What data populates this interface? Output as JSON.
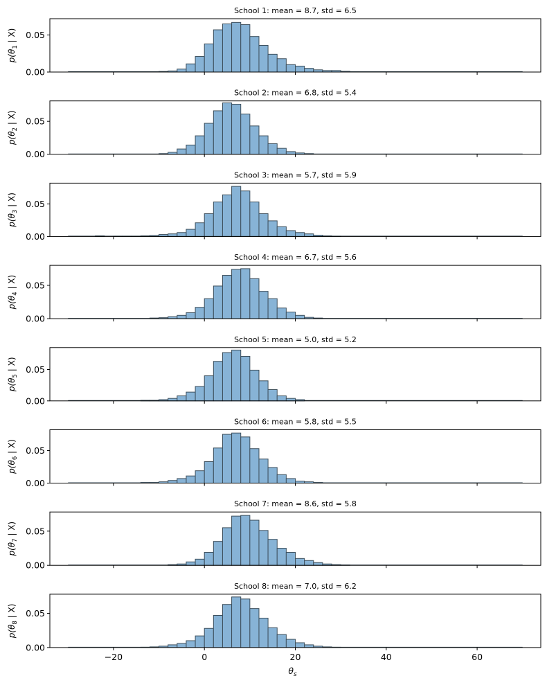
{
  "chart_data": [
    {
      "type": "bar",
      "title": "School 1: mean = 8.7, std = 6.5",
      "ylabel_var": "1",
      "ylim": [
        0,
        0.072
      ],
      "yticks": [
        "0.00",
        "0.05"
      ],
      "xlim": [
        -34,
        74
      ],
      "bin_width": 2,
      "bins": [
        {
          "x": -10,
          "y": 0.0008
        },
        {
          "x": -8,
          "y": 0.0015
        },
        {
          "x": -6,
          "y": 0.004
        },
        {
          "x": -4,
          "y": 0.011
        },
        {
          "x": -2,
          "y": 0.021
        },
        {
          "x": 0,
          "y": 0.038
        },
        {
          "x": 2,
          "y": 0.057
        },
        {
          "x": 4,
          "y": 0.065
        },
        {
          "x": 6,
          "y": 0.067
        },
        {
          "x": 8,
          "y": 0.064
        },
        {
          "x": 10,
          "y": 0.048
        },
        {
          "x": 12,
          "y": 0.036
        },
        {
          "x": 14,
          "y": 0.024
        },
        {
          "x": 16,
          "y": 0.018
        },
        {
          "x": 18,
          "y": 0.01
        },
        {
          "x": 20,
          "y": 0.008
        },
        {
          "x": 22,
          "y": 0.005
        },
        {
          "x": 24,
          "y": 0.003
        },
        {
          "x": 26,
          "y": 0.002
        },
        {
          "x": 28,
          "y": 0.002
        },
        {
          "x": 30,
          "y": 0.001
        },
        {
          "x": 32,
          "y": 0.0005
        }
      ]
    },
    {
      "type": "bar",
      "title": "School 2: mean = 6.8, std = 5.4",
      "ylabel_var": "2",
      "ylim": [
        0,
        0.081
      ],
      "yticks": [
        "0.00",
        "0.05"
      ],
      "xlim": [
        -34,
        74
      ],
      "bin_width": 2,
      "bins": [
        {
          "x": -10,
          "y": 0.001
        },
        {
          "x": -8,
          "y": 0.003
        },
        {
          "x": -6,
          "y": 0.008
        },
        {
          "x": -4,
          "y": 0.014
        },
        {
          "x": -2,
          "y": 0.028
        },
        {
          "x": 0,
          "y": 0.047
        },
        {
          "x": 2,
          "y": 0.066
        },
        {
          "x": 4,
          "y": 0.078
        },
        {
          "x": 6,
          "y": 0.076
        },
        {
          "x": 8,
          "y": 0.061
        },
        {
          "x": 10,
          "y": 0.043
        },
        {
          "x": 12,
          "y": 0.028
        },
        {
          "x": 14,
          "y": 0.016
        },
        {
          "x": 16,
          "y": 0.009
        },
        {
          "x": 18,
          "y": 0.004
        },
        {
          "x": 20,
          "y": 0.002
        },
        {
          "x": 22,
          "y": 0.001
        }
      ]
    },
    {
      "type": "bar",
      "title": "School 3: mean = 5.7, std = 5.9",
      "ylabel_var": "3",
      "ylim": [
        0,
        0.082
      ],
      "yticks": [
        "0.00",
        "0.05"
      ],
      "xlim": [
        -34,
        74
      ],
      "bin_width": 2,
      "bins": [
        {
          "x": -24,
          "y": 0.001
        },
        {
          "x": -20,
          "y": 0.0005
        },
        {
          "x": -18,
          "y": 0.0005
        },
        {
          "x": -16,
          "y": 0.0005
        },
        {
          "x": -14,
          "y": 0.001
        },
        {
          "x": -12,
          "y": 0.0015
        },
        {
          "x": -10,
          "y": 0.003
        },
        {
          "x": -8,
          "y": 0.004
        },
        {
          "x": -6,
          "y": 0.006
        },
        {
          "x": -4,
          "y": 0.011
        },
        {
          "x": -2,
          "y": 0.021
        },
        {
          "x": 0,
          "y": 0.035
        },
        {
          "x": 2,
          "y": 0.053
        },
        {
          "x": 4,
          "y": 0.064
        },
        {
          "x": 6,
          "y": 0.077
        },
        {
          "x": 8,
          "y": 0.07
        },
        {
          "x": 10,
          "y": 0.053
        },
        {
          "x": 12,
          "y": 0.035
        },
        {
          "x": 14,
          "y": 0.024
        },
        {
          "x": 16,
          "y": 0.015
        },
        {
          "x": 18,
          "y": 0.009
        },
        {
          "x": 20,
          "y": 0.006
        },
        {
          "x": 22,
          "y": 0.004
        },
        {
          "x": 24,
          "y": 0.002
        },
        {
          "x": 26,
          "y": 0.001
        },
        {
          "x": 28,
          "y": 0.0005
        }
      ]
    },
    {
      "type": "bar",
      "title": "School 4: mean = 6.7, std = 5.6",
      "ylabel_var": "4",
      "ylim": [
        0,
        0.08
      ],
      "yticks": [
        "0.00",
        "0.05"
      ],
      "xlim": [
        -34,
        74
      ],
      "bin_width": 2,
      "bins": [
        {
          "x": -12,
          "y": 0.001
        },
        {
          "x": -10,
          "y": 0.0015
        },
        {
          "x": -8,
          "y": 0.003
        },
        {
          "x": -6,
          "y": 0.005
        },
        {
          "x": -4,
          "y": 0.009
        },
        {
          "x": -2,
          "y": 0.017
        },
        {
          "x": 0,
          "y": 0.03
        },
        {
          "x": 2,
          "y": 0.049
        },
        {
          "x": 4,
          "y": 0.065
        },
        {
          "x": 6,
          "y": 0.074
        },
        {
          "x": 8,
          "y": 0.075
        },
        {
          "x": 10,
          "y": 0.06
        },
        {
          "x": 12,
          "y": 0.041
        },
        {
          "x": 14,
          "y": 0.03
        },
        {
          "x": 16,
          "y": 0.016
        },
        {
          "x": 18,
          "y": 0.01
        },
        {
          "x": 20,
          "y": 0.005
        },
        {
          "x": 22,
          "y": 0.002
        },
        {
          "x": 24,
          "y": 0.001
        }
      ]
    },
    {
      "type": "bar",
      "title": "School 5: mean = 5.0, std = 5.2",
      "ylabel_var": "5",
      "ylim": [
        0,
        0.085
      ],
      "yticks": [
        "0.00",
        "0.05"
      ],
      "xlim": [
        -34,
        74
      ],
      "bin_width": 2,
      "bins": [
        {
          "x": -14,
          "y": 0.001
        },
        {
          "x": -12,
          "y": 0.001
        },
        {
          "x": -10,
          "y": 0.002
        },
        {
          "x": -8,
          "y": 0.004
        },
        {
          "x": -6,
          "y": 0.008
        },
        {
          "x": -4,
          "y": 0.014
        },
        {
          "x": -2,
          "y": 0.023
        },
        {
          "x": 0,
          "y": 0.04
        },
        {
          "x": 2,
          "y": 0.063
        },
        {
          "x": 4,
          "y": 0.077
        },
        {
          "x": 6,
          "y": 0.081
        },
        {
          "x": 8,
          "y": 0.071
        },
        {
          "x": 10,
          "y": 0.049
        },
        {
          "x": 12,
          "y": 0.032
        },
        {
          "x": 14,
          "y": 0.018
        },
        {
          "x": 16,
          "y": 0.008
        },
        {
          "x": 18,
          "y": 0.004
        },
        {
          "x": 20,
          "y": 0.002
        }
      ]
    },
    {
      "type": "bar",
      "title": "School 6: mean = 5.8, std = 5.5",
      "ylabel_var": "6",
      "ylim": [
        0,
        0.082
      ],
      "yticks": [
        "0.00",
        "0.05"
      ],
      "xlim": [
        -34,
        74
      ],
      "bin_width": 2,
      "bins": [
        {
          "x": -16,
          "y": 0.0005
        },
        {
          "x": -14,
          "y": 0.001
        },
        {
          "x": -12,
          "y": 0.001
        },
        {
          "x": -10,
          "y": 0.002
        },
        {
          "x": -8,
          "y": 0.004
        },
        {
          "x": -6,
          "y": 0.007
        },
        {
          "x": -4,
          "y": 0.011
        },
        {
          "x": -2,
          "y": 0.019
        },
        {
          "x": 0,
          "y": 0.033
        },
        {
          "x": 2,
          "y": 0.054
        },
        {
          "x": 4,
          "y": 0.075
        },
        {
          "x": 6,
          "y": 0.077
        },
        {
          "x": 8,
          "y": 0.071
        },
        {
          "x": 10,
          "y": 0.053
        },
        {
          "x": 12,
          "y": 0.037
        },
        {
          "x": 14,
          "y": 0.024
        },
        {
          "x": 16,
          "y": 0.013
        },
        {
          "x": 18,
          "y": 0.007
        },
        {
          "x": 20,
          "y": 0.003
        },
        {
          "x": 22,
          "y": 0.002
        },
        {
          "x": 24,
          "y": 0.001
        }
      ]
    },
    {
      "type": "bar",
      "title": "School 7: mean = 8.6, std = 5.8",
      "ylabel_var": "7",
      "ylim": [
        0,
        0.078
      ],
      "yticks": [
        "0.00",
        "0.05"
      ],
      "xlim": [
        -34,
        74
      ],
      "bin_width": 2,
      "bins": [
        {
          "x": -8,
          "y": 0.001
        },
        {
          "x": -6,
          "y": 0.002
        },
        {
          "x": -4,
          "y": 0.005
        },
        {
          "x": -2,
          "y": 0.009
        },
        {
          "x": 0,
          "y": 0.019
        },
        {
          "x": 2,
          "y": 0.035
        },
        {
          "x": 4,
          "y": 0.055
        },
        {
          "x": 6,
          "y": 0.072
        },
        {
          "x": 8,
          "y": 0.073
        },
        {
          "x": 10,
          "y": 0.066
        },
        {
          "x": 12,
          "y": 0.051
        },
        {
          "x": 14,
          "y": 0.038
        },
        {
          "x": 16,
          "y": 0.025
        },
        {
          "x": 18,
          "y": 0.019
        },
        {
          "x": 20,
          "y": 0.01
        },
        {
          "x": 22,
          "y": 0.007
        },
        {
          "x": 24,
          "y": 0.004
        },
        {
          "x": 26,
          "y": 0.002
        },
        {
          "x": 28,
          "y": 0.001
        },
        {
          "x": 30,
          "y": 0.0005
        }
      ]
    },
    {
      "type": "bar",
      "title": "School 8: mean = 7.0, std = 6.2",
      "ylabel_var": "8",
      "ylim": [
        0,
        0.078
      ],
      "yticks": [
        "0.00",
        "0.05"
      ],
      "xlim": [
        -34,
        74
      ],
      "bin_width": 2,
      "bins": [
        {
          "x": -14,
          "y": 0.0005
        },
        {
          "x": -12,
          "y": 0.001
        },
        {
          "x": -10,
          "y": 0.002
        },
        {
          "x": -8,
          "y": 0.004
        },
        {
          "x": -6,
          "y": 0.006
        },
        {
          "x": -4,
          "y": 0.01
        },
        {
          "x": -2,
          "y": 0.017
        },
        {
          "x": 0,
          "y": 0.028
        },
        {
          "x": 2,
          "y": 0.047
        },
        {
          "x": 4,
          "y": 0.063
        },
        {
          "x": 6,
          "y": 0.074
        },
        {
          "x": 8,
          "y": 0.071
        },
        {
          "x": 10,
          "y": 0.057
        },
        {
          "x": 12,
          "y": 0.043
        },
        {
          "x": 14,
          "y": 0.029
        },
        {
          "x": 16,
          "y": 0.019
        },
        {
          "x": 18,
          "y": 0.012
        },
        {
          "x": 20,
          "y": 0.007
        },
        {
          "x": 22,
          "y": 0.004
        },
        {
          "x": 24,
          "y": 0.002
        },
        {
          "x": 26,
          "y": 0.001
        },
        {
          "x": 28,
          "y": 0.0005
        }
      ]
    }
  ],
  "shared": {
    "ylabel_prefix": "p(θ",
    "ylabel_suffix": " | X)",
    "xlabel_base": "θ",
    "xlabel_sub": "s",
    "xticks": [
      {
        "value": -20,
        "label": "−20"
      },
      {
        "value": 0,
        "label": "0"
      },
      {
        "value": 20,
        "label": "20"
      },
      {
        "value": 40,
        "label": "40"
      },
      {
        "value": 60,
        "label": "60"
      }
    ],
    "colors": {
      "bar_fill": "#87b3d6",
      "bar_stroke": "#3d4f5c",
      "axis": "#000000"
    }
  }
}
